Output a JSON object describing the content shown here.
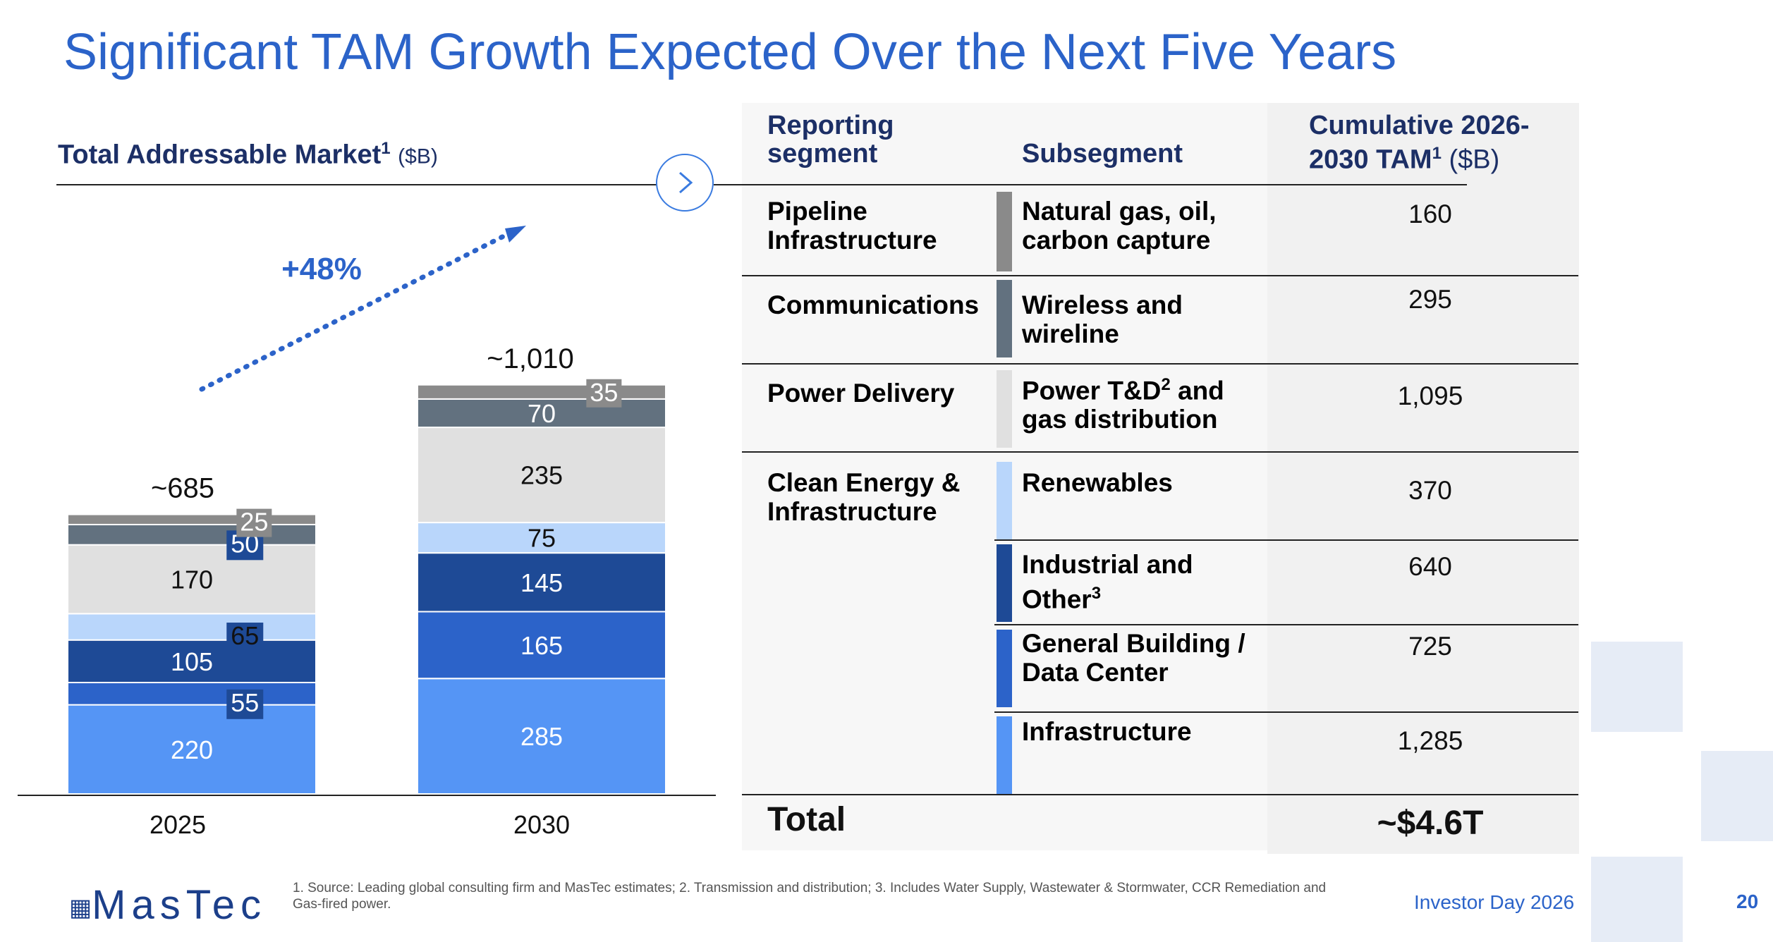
{
  "slide": {
    "title": "Significant TAM Growth Expected Over the Next Five Years",
    "chart_heading": "Total Addressable Market",
    "chart_heading_sup": "1",
    "chart_heading_unit": "($B)",
    "footnote": "1. Source: Leading global consulting firm and MasTec estimates; 2. Transmission and distribution; 3. Includes Water Supply, Wastewater & Stormwater, CCR Remediation and Gas-fired power.",
    "event": "Investor Day 2026",
    "page_number": "20",
    "logo_text": "MasTec",
    "nav_icon": "chevron-right-icon"
  },
  "chart_data": {
    "type": "bar",
    "stacked": true,
    "categories": [
      "2025",
      "2030"
    ],
    "totals": [
      "~685",
      "~1,010"
    ],
    "growth_label": "+48%",
    "series": [
      {
        "segment": "Infrastructure",
        "values": [
          220,
          285
        ],
        "color": "#5595f5",
        "label_color": "#ffffff"
      },
      {
        "segment": "General Building / Data Center",
        "values": [
          55,
          165
        ],
        "color": "#2c63c9",
        "label_color": "#ffffff"
      },
      {
        "segment": "Industrial and Other",
        "values": [
          105,
          145
        ],
        "color": "#1e4a96",
        "label_color": "#ffffff"
      },
      {
        "segment": "Renewables",
        "values": [
          65,
          75
        ],
        "color": "#b9d6fb",
        "label_color": "#111111"
      },
      {
        "segment": "Power T&D and gas distribution",
        "values": [
          170,
          235
        ],
        "color": "#e0e0e0",
        "label_color": "#111111"
      },
      {
        "segment": "Wireless and wireline",
        "values": [
          50,
          70
        ],
        "color": "#62717f",
        "label_color": "#ffffff"
      },
      {
        "segment": "Natural gas, oil, carbon capture",
        "values": [
          25,
          35
        ],
        "color": "#8a8a8a",
        "label_color": "#ffffff"
      }
    ]
  },
  "table": {
    "headers": {
      "segment": "Reporting segment",
      "subsegment": "Subsegment",
      "tam": "Cumulative 2026-2030 TAM",
      "tam_sup": "1",
      "tam_unit": "($B)"
    },
    "rows": [
      {
        "segment": "Pipeline Infrastructure",
        "subsegment": "Natural gas, oil, carbon capture",
        "value": "160",
        "color": "#8a8a8a"
      },
      {
        "segment": "Communications",
        "subsegment": "Wireless and wireline",
        "value": "295",
        "color": "#62717f"
      },
      {
        "segment": "Power Delivery",
        "subsegment": "Power T&D",
        "subsegment_sup": "2",
        "subsegment_rest": " and gas distribution",
        "value": "1,095",
        "color": "#e0e0e0"
      },
      {
        "segment": "Clean Energy & Infrastructure",
        "subsegment": "Renewables",
        "value": "370",
        "color": "#b9d6fb"
      },
      {
        "segment": "",
        "subsegment": "Industrial and Other",
        "subsegment_sup": "3",
        "value": "640",
        "color": "#1e4a96"
      },
      {
        "segment": "",
        "subsegment": "General Building / Data Center",
        "value": "725",
        "color": "#2c63c9"
      },
      {
        "segment": "",
        "subsegment": "Infrastructure",
        "value": "1,285",
        "color": "#5595f5"
      }
    ],
    "total_label": "Total",
    "total_value": "~$4.6T"
  }
}
